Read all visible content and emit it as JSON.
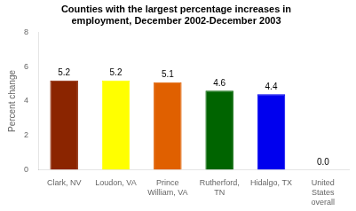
{
  "chart_data": {
    "type": "bar",
    "title": "Counties with the largest percentage increases in\nemployment, December 2002-December 2003",
    "categories": [
      "Clark, NV",
      "Loudon, VA",
      "Prince\nWilliam, VA",
      "Rutherford,\nTN",
      "Hidalgo, TX",
      "United\nStates\noverall"
    ],
    "values": [
      5.2,
      5.2,
      5.1,
      4.6,
      4.4,
      0.0
    ],
    "value_labels": [
      "5.2",
      "5.2",
      "5.1",
      "4.6",
      "4.4",
      "0.0"
    ],
    "colors": [
      "#8B2500",
      "#FFFF00",
      "#E06000",
      "#006400",
      "#0000EE",
      "#FFFFFF"
    ],
    "ylabel": "Percent change",
    "ylim": [
      0,
      8
    ],
    "yticks": [
      0,
      2,
      4,
      6,
      8
    ],
    "data_labels": true,
    "grid": false
  }
}
